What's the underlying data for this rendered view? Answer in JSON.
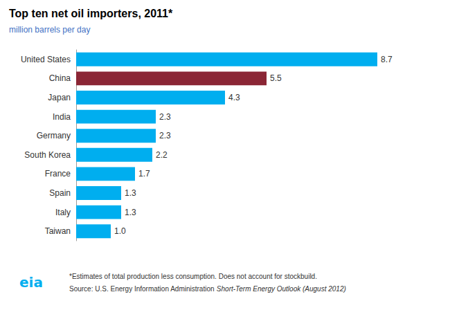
{
  "chart_data": {
    "type": "bar",
    "orientation": "horizontal",
    "title": "Top ten net oil importers, 2011*",
    "subtitle": "million barrels per day",
    "categories": [
      "United States",
      "China",
      "Japan",
      "India",
      "Germany",
      "South Korea",
      "France",
      "Spain",
      "Italy",
      "Taiwan"
    ],
    "values": [
      8.7,
      5.5,
      4.3,
      2.3,
      2.3,
      2.2,
      1.7,
      1.3,
      1.3,
      1.0
    ],
    "value_labels": [
      "8.7",
      "5.5",
      "4.3",
      "2.3",
      "2.3",
      "2.2",
      "1.7",
      "1.3",
      "1.3",
      "1.0"
    ],
    "colors": [
      "#00AEEF",
      "#8B2635",
      "#00AEEF",
      "#00AEEF",
      "#00AEEF",
      "#00AEEF",
      "#00AEEF",
      "#00AEEF",
      "#00AEEF",
      "#00AEEF"
    ],
    "xlim": [
      0,
      10.0
    ],
    "data_labels": true,
    "tick_labels": "y",
    "grid": false,
    "annotations": [
      "*Estimates of total production less consumption. Does not account for stockbuild.",
      "Source: U.S. Energy Information Administration",
      "Short-Term Energy Outlook (August 2012)",
      "eia"
    ]
  }
}
